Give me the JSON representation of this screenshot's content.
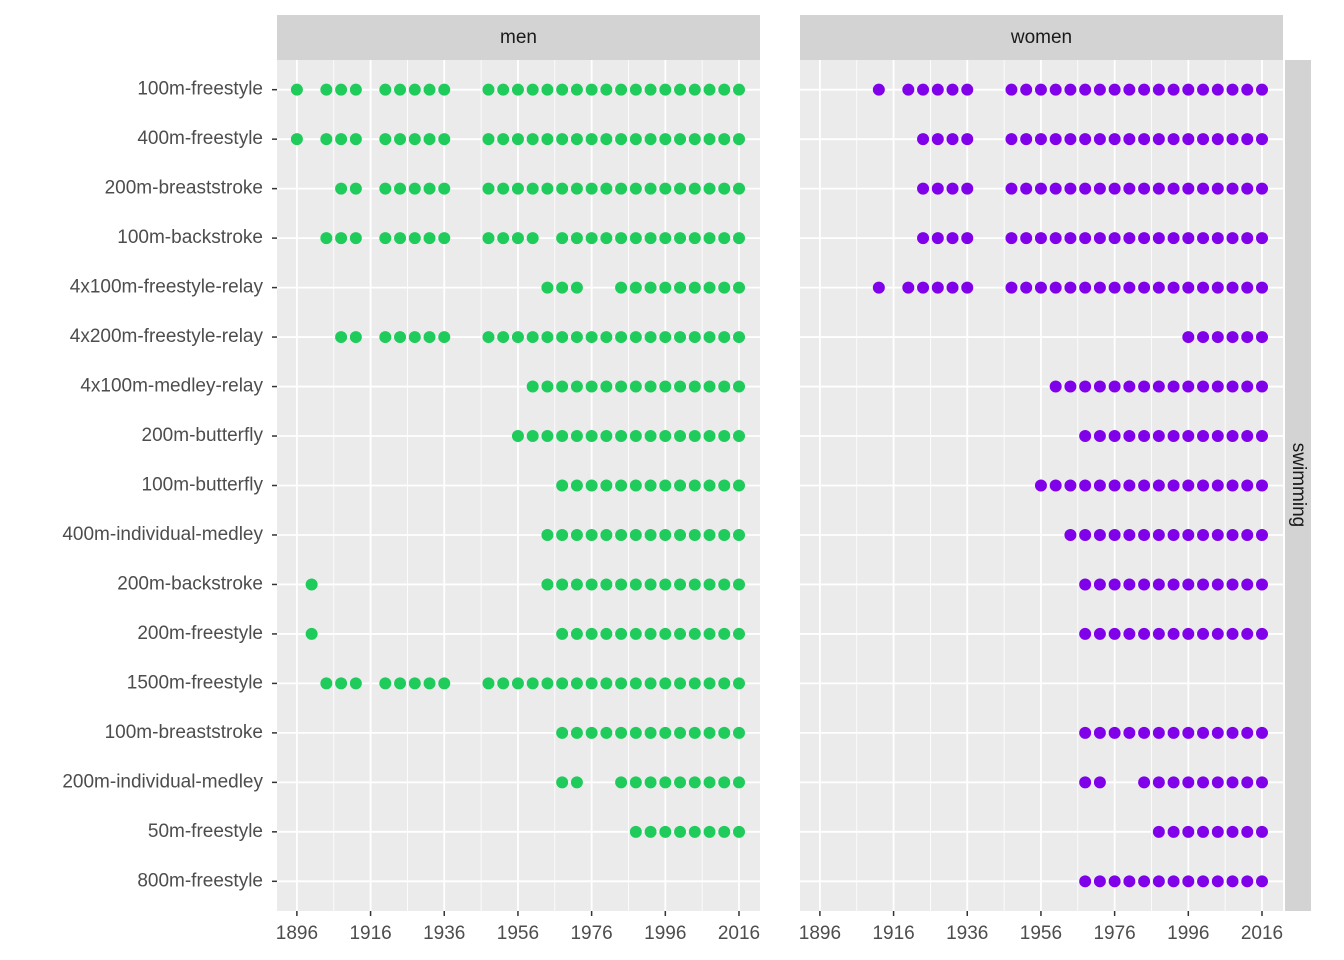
{
  "chart_data": [
    {
      "type": "dot",
      "title": "men",
      "color": "#1fcb5b",
      "categories": [
        "100m-freestyle",
        "400m-freestyle",
        "200m-breaststroke",
        "100m-backstroke",
        "4x100m-freestyle-relay",
        "4x200m-freestyle-relay",
        "4x100m-medley-relay",
        "200m-butterfly",
        "100m-butterfly",
        "400m-individual-medley",
        "200m-backstroke",
        "200m-freestyle",
        "1500m-freestyle",
        "100m-breaststroke",
        "200m-individual-medley",
        "50m-freestyle",
        "800m-freestyle"
      ],
      "years": [
        [
          1896,
          1904,
          1908,
          1912,
          1920,
          1924,
          1928,
          1932,
          1936,
          1948,
          1952,
          1956,
          1960,
          1964,
          1968,
          1972,
          1976,
          1980,
          1984,
          1988,
          1992,
          1996,
          2000,
          2004,
          2008,
          2012,
          2016
        ],
        [
          1896,
          1904,
          1908,
          1912,
          1920,
          1924,
          1928,
          1932,
          1936,
          1948,
          1952,
          1956,
          1960,
          1964,
          1968,
          1972,
          1976,
          1980,
          1984,
          1988,
          1992,
          1996,
          2000,
          2004,
          2008,
          2012,
          2016
        ],
        [
          1908,
          1912,
          1920,
          1924,
          1928,
          1932,
          1936,
          1948,
          1952,
          1956,
          1960,
          1964,
          1968,
          1972,
          1976,
          1980,
          1984,
          1988,
          1992,
          1996,
          2000,
          2004,
          2008,
          2012,
          2016
        ],
        [
          1904,
          1908,
          1912,
          1920,
          1924,
          1928,
          1932,
          1936,
          1948,
          1952,
          1956,
          1960,
          1968,
          1972,
          1976,
          1980,
          1984,
          1988,
          1992,
          1996,
          2000,
          2004,
          2008,
          2012,
          2016
        ],
        [
          1964,
          1968,
          1972,
          1984,
          1988,
          1992,
          1996,
          2000,
          2004,
          2008,
          2012,
          2016
        ],
        [
          1908,
          1912,
          1920,
          1924,
          1928,
          1932,
          1936,
          1948,
          1952,
          1956,
          1960,
          1964,
          1968,
          1972,
          1976,
          1980,
          1984,
          1988,
          1992,
          1996,
          2000,
          2004,
          2008,
          2012,
          2016
        ],
        [
          1960,
          1964,
          1968,
          1972,
          1976,
          1980,
          1984,
          1988,
          1992,
          1996,
          2000,
          2004,
          2008,
          2012,
          2016
        ],
        [
          1956,
          1960,
          1964,
          1968,
          1972,
          1976,
          1980,
          1984,
          1988,
          1992,
          1996,
          2000,
          2004,
          2008,
          2012,
          2016
        ],
        [
          1968,
          1972,
          1976,
          1980,
          1984,
          1988,
          1992,
          1996,
          2000,
          2004,
          2008,
          2012,
          2016
        ],
        [
          1964,
          1968,
          1972,
          1976,
          1980,
          1984,
          1988,
          1992,
          1996,
          2000,
          2004,
          2008,
          2012,
          2016
        ],
        [
          1900,
          1964,
          1968,
          1972,
          1976,
          1980,
          1984,
          1988,
          1992,
          1996,
          2000,
          2004,
          2008,
          2012,
          2016
        ],
        [
          1900,
          1968,
          1972,
          1976,
          1980,
          1984,
          1988,
          1992,
          1996,
          2000,
          2004,
          2008,
          2012,
          2016
        ],
        [
          1904,
          1908,
          1912,
          1920,
          1924,
          1928,
          1932,
          1936,
          1948,
          1952,
          1956,
          1960,
          1964,
          1968,
          1972,
          1976,
          1980,
          1984,
          1988,
          1992,
          1996,
          2000,
          2004,
          2008,
          2012,
          2016
        ],
        [
          1968,
          1972,
          1976,
          1980,
          1984,
          1988,
          1992,
          1996,
          2000,
          2004,
          2008,
          2012,
          2016
        ],
        [
          1968,
          1972,
          1984,
          1988,
          1992,
          1996,
          2000,
          2004,
          2008,
          2012,
          2016
        ],
        [
          1988,
          1992,
          1996,
          2000,
          2004,
          2008,
          2012,
          2016
        ],
        []
      ],
      "xlim": [
        1890.6,
        2021.7
      ],
      "xticks": [
        1896,
        1916,
        1936,
        1956,
        1976,
        1996,
        2016
      ]
    },
    {
      "type": "dot",
      "title": "women",
      "color": "#8000ea",
      "years": [
        [
          1912,
          1920,
          1924,
          1928,
          1932,
          1936,
          1948,
          1952,
          1956,
          1960,
          1964,
          1968,
          1972,
          1976,
          1980,
          1984,
          1988,
          1992,
          1996,
          2000,
          2004,
          2008,
          2012,
          2016
        ],
        [
          1924,
          1928,
          1932,
          1936,
          1948,
          1952,
          1956,
          1960,
          1964,
          1968,
          1972,
          1976,
          1980,
          1984,
          1988,
          1992,
          1996,
          2000,
          2004,
          2008,
          2012,
          2016
        ],
        [
          1924,
          1928,
          1932,
          1936,
          1948,
          1952,
          1956,
          1960,
          1964,
          1968,
          1972,
          1976,
          1980,
          1984,
          1988,
          1992,
          1996,
          2000,
          2004,
          2008,
          2012,
          2016
        ],
        [
          1924,
          1928,
          1932,
          1936,
          1948,
          1952,
          1956,
          1960,
          1964,
          1968,
          1972,
          1976,
          1980,
          1984,
          1988,
          1992,
          1996,
          2000,
          2004,
          2008,
          2012,
          2016
        ],
        [
          1912,
          1920,
          1924,
          1928,
          1932,
          1936,
          1948,
          1952,
          1956,
          1960,
          1964,
          1968,
          1972,
          1976,
          1980,
          1984,
          1988,
          1992,
          1996,
          2000,
          2004,
          2008,
          2012,
          2016
        ],
        [
          1996,
          2000,
          2004,
          2008,
          2012,
          2016
        ],
        [
          1960,
          1964,
          1968,
          1972,
          1976,
          1980,
          1984,
          1988,
          1992,
          1996,
          2000,
          2004,
          2008,
          2012,
          2016
        ],
        [
          1968,
          1972,
          1976,
          1980,
          1984,
          1988,
          1992,
          1996,
          2000,
          2004,
          2008,
          2012,
          2016
        ],
        [
          1956,
          1960,
          1964,
          1968,
          1972,
          1976,
          1980,
          1984,
          1988,
          1992,
          1996,
          2000,
          2004,
          2008,
          2012,
          2016
        ],
        [
          1964,
          1968,
          1972,
          1976,
          1980,
          1984,
          1988,
          1992,
          1996,
          2000,
          2004,
          2008,
          2012,
          2016
        ],
        [
          1968,
          1972,
          1976,
          1980,
          1984,
          1988,
          1992,
          1996,
          2000,
          2004,
          2008,
          2012,
          2016
        ],
        [
          1968,
          1972,
          1976,
          1980,
          1984,
          1988,
          1992,
          1996,
          2000,
          2004,
          2008,
          2012,
          2016
        ],
        [],
        [
          1968,
          1972,
          1976,
          1980,
          1984,
          1988,
          1992,
          1996,
          2000,
          2004,
          2008,
          2012,
          2016
        ],
        [
          1968,
          1972,
          1984,
          1988,
          1992,
          1996,
          2000,
          2004,
          2008,
          2012,
          2016
        ],
        [
          1988,
          1992,
          1996,
          2000,
          2004,
          2008,
          2012,
          2016
        ],
        [
          1968,
          1972,
          1976,
          1980,
          1984,
          1988,
          1992,
          1996,
          2000,
          2004,
          2008,
          2012,
          2016
        ]
      ],
      "xlim": [
        1890.6,
        2021.7
      ],
      "xticks": [
        1896,
        1916,
        1936,
        1956,
        1976,
        1996,
        2016
      ]
    }
  ],
  "row_strip": "swimming"
}
